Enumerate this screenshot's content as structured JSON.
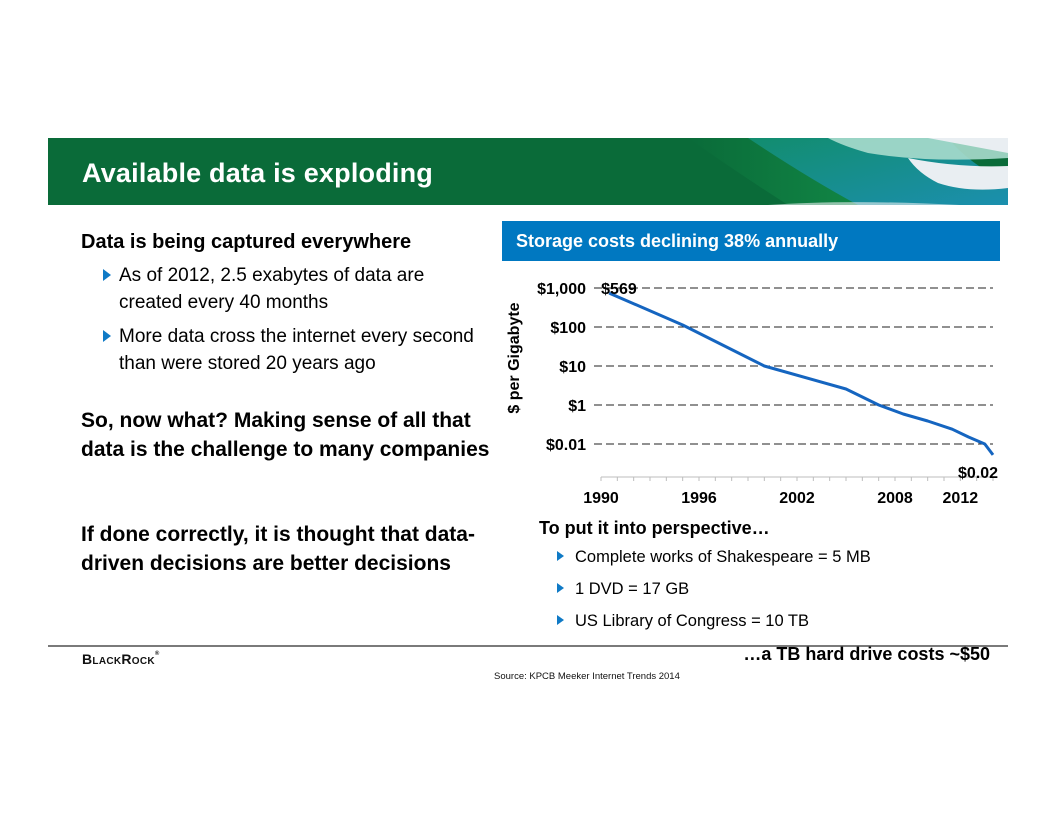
{
  "header": {
    "title": "Available data is exploding",
    "colors": {
      "green_dark": "#0a6b39",
      "green_mid": "#14914a",
      "teal": "#17988a",
      "blue": "#1f8fb8",
      "light": "#e9eef2"
    }
  },
  "left": {
    "heading": "Data is being captured everywhere",
    "bullets": [
      "As of 2012, 2.5 exabytes of data are created every 40 months",
      "More data cross the internet every second than were stored 20 years ago"
    ],
    "paragraph_1": "So, now what? Making sense of all that data is the challenge to many companies",
    "paragraph_2": "If done correctly, it is thought that data-driven decisions are better decisions"
  },
  "chart_banner": {
    "title": "Storage costs declining 38% annually",
    "color": "#0078c1"
  },
  "chart_data": {
    "type": "line",
    "title": "Storage costs declining 38% annually",
    "xlabel": "",
    "ylabel": "$ per Gigabyte",
    "x_ticks": [
      "1990",
      "1996",
      "2002",
      "2008",
      "2012"
    ],
    "x_tick_values": [
      1990,
      1996,
      2002,
      2008,
      2012
    ],
    "xlim": [
      1990,
      2014
    ],
    "y_scale": "log",
    "y_ticks": [
      "$1,000",
      "$100",
      "$10",
      "$1",
      "$0.01"
    ],
    "y_tick_levels": [
      0,
      1,
      2,
      3,
      4
    ],
    "grid": "horizontal dashed",
    "series": [
      {
        "name": "$ per Gigabyte",
        "color": "#1565c0",
        "x": [
          1990.5,
          1995,
          2000,
          2005,
          2007,
          2008.5,
          2010,
          2011.5,
          2012.5,
          2013.5,
          2014
        ],
        "level": [
          0.13,
          0.95,
          2.0,
          2.59,
          3.0,
          3.23,
          3.41,
          3.62,
          3.82,
          4.0,
          4.28
        ]
      }
    ],
    "annotations": [
      {
        "text": "$569",
        "x": 1990.5,
        "position": "start"
      },
      {
        "text": "$0.02",
        "x": 2014,
        "position": "end"
      }
    ]
  },
  "perspective": {
    "title": "To put it into perspective…",
    "items": [
      "Complete works of Shakespeare = 5 MB",
      "1 DVD = 17 GB",
      "US Library of Congress = 10 TB"
    ],
    "callout": "…a TB hard drive costs ~$50"
  },
  "footer": {
    "logo": "BlackRock",
    "logo_mark": "®",
    "source": "Source: KPCB Meeker Internet Trends 2014"
  }
}
